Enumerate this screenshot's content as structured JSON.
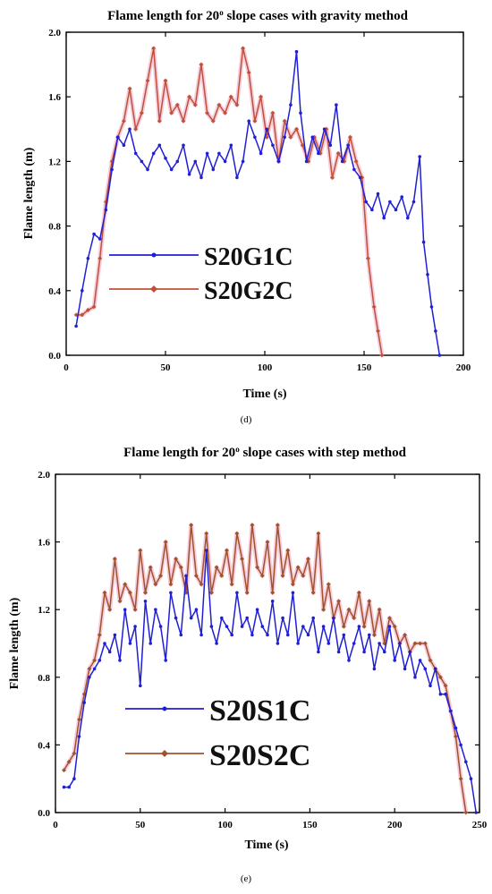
{
  "charts": [
    {
      "panel": "d",
      "caption": "(d)",
      "title_prefix": "Flame length for 20",
      "title_sup": "o",
      "title_suffix": " slope cases with gravity method",
      "colors": {
        "S20G1C": "#1f1fd6",
        "S20G2C": "#c0503a",
        "halo": "#f2b8cc"
      }
    },
    {
      "panel": "e",
      "caption": "(e)",
      "title_prefix": "Flame length for 20",
      "title_sup": "o",
      "title_suffix": " slope cases with step method",
      "colors": {
        "S20S1C": "#1f1fd6",
        "S20S2C": "#a0522d",
        "halo": "#f2b8cc"
      }
    }
  ],
  "chart_data": [
    {
      "type": "line",
      "title": "Flame length for 20o slope cases with gravity method",
      "xlabel": "Time (s)",
      "ylabel": "Flame length (m)",
      "xlim": [
        0,
        200
      ],
      "ylim": [
        0,
        2.0
      ],
      "xticks": [
        "0",
        "50",
        "100",
        "150",
        "200"
      ],
      "yticks": [
        "0.0",
        "0.4",
        "0.8",
        "1.2",
        "1.6",
        "2.0"
      ],
      "legend_position": "center-left",
      "series": [
        {
          "name": "S20G1C",
          "marker": "circle",
          "x": [
            5,
            8,
            11,
            14,
            17,
            20,
            23,
            26,
            29,
            32,
            35,
            38,
            41,
            44,
            47,
            50,
            53,
            56,
            59,
            62,
            65,
            68,
            71,
            74,
            77,
            80,
            83,
            86,
            89,
            92,
            95,
            98,
            101,
            104,
            107,
            110,
            113,
            116,
            118,
            121,
            124,
            127,
            130,
            133,
            136,
            139,
            142,
            145,
            148,
            151,
            154,
            157,
            160,
            163,
            166,
            169,
            172,
            175,
            178,
            180,
            182,
            184,
            186,
            188
          ],
          "y": [
            0.18,
            0.4,
            0.6,
            0.75,
            0.72,
            0.9,
            1.15,
            1.35,
            1.3,
            1.4,
            1.25,
            1.2,
            1.15,
            1.25,
            1.3,
            1.22,
            1.15,
            1.2,
            1.3,
            1.12,
            1.2,
            1.1,
            1.25,
            1.15,
            1.25,
            1.2,
            1.3,
            1.1,
            1.2,
            1.45,
            1.35,
            1.25,
            1.4,
            1.3,
            1.2,
            1.35,
            1.55,
            1.88,
            1.5,
            1.2,
            1.35,
            1.25,
            1.4,
            1.3,
            1.55,
            1.2,
            1.3,
            1.15,
            1.1,
            0.95,
            0.9,
            1.0,
            0.85,
            0.95,
            0.9,
            0.98,
            0.85,
            0.95,
            1.23,
            0.7,
            0.5,
            0.3,
            0.15,
            0.0
          ]
        },
        {
          "name": "S20G2C",
          "marker": "diamond",
          "x": [
            5,
            8,
            11,
            14,
            17,
            20,
            23,
            26,
            29,
            32,
            35,
            38,
            41,
            44,
            47,
            50,
            53,
            56,
            59,
            62,
            65,
            68,
            71,
            74,
            77,
            80,
            83,
            86,
            89,
            92,
            95,
            98,
            101,
            104,
            107,
            110,
            113,
            116,
            119,
            122,
            125,
            128,
            131,
            134,
            137,
            140,
            143,
            146,
            149,
            152,
            155,
            157,
            159
          ],
          "y": [
            0.25,
            0.25,
            0.28,
            0.3,
            0.6,
            0.95,
            1.2,
            1.35,
            1.45,
            1.65,
            1.4,
            1.5,
            1.7,
            1.9,
            1.45,
            1.7,
            1.5,
            1.55,
            1.45,
            1.6,
            1.55,
            1.8,
            1.5,
            1.45,
            1.55,
            1.5,
            1.6,
            1.55,
            1.9,
            1.75,
            1.45,
            1.6,
            1.35,
            1.5,
            1.2,
            1.45,
            1.35,
            1.4,
            1.3,
            1.2,
            1.35,
            1.25,
            1.4,
            1.1,
            1.25,
            1.2,
            1.35,
            1.2,
            1.1,
            0.6,
            0.3,
            0.15,
            0.0
          ]
        }
      ]
    },
    {
      "type": "line",
      "title": "Flame length for 20o slope cases with step method",
      "xlabel": "Time (s)",
      "ylabel": "Flame length (m)",
      "xlim": [
        0,
        250
      ],
      "ylim": [
        0,
        2.0
      ],
      "xticks": [
        "0",
        "50",
        "100",
        "150",
        "200",
        "250"
      ],
      "yticks": [
        "0.0",
        "0.4",
        "0.8",
        "1.2",
        "1.6",
        "2.0"
      ],
      "legend_position": "lower-left",
      "series": [
        {
          "name": "S20S1C",
          "marker": "circle",
          "x": [
            5,
            8,
            11,
            14,
            17,
            20,
            23,
            26,
            29,
            32,
            35,
            38,
            41,
            44,
            47,
            50,
            53,
            56,
            59,
            62,
            65,
            68,
            71,
            74,
            77,
            80,
            83,
            86,
            89,
            92,
            95,
            98,
            101,
            104,
            107,
            110,
            113,
            116,
            119,
            122,
            125,
            128,
            131,
            134,
            137,
            140,
            143,
            146,
            149,
            152,
            155,
            158,
            161,
            164,
            167,
            170,
            173,
            176,
            179,
            182,
            185,
            188,
            191,
            194,
            197,
            200,
            203,
            206,
            209,
            212,
            215,
            218,
            221,
            224,
            227,
            230,
            233,
            236,
            239,
            242,
            245,
            248
          ],
          "y": [
            0.15,
            0.15,
            0.2,
            0.45,
            0.65,
            0.8,
            0.85,
            0.9,
            1.0,
            0.95,
            1.05,
            0.9,
            1.2,
            1.0,
            1.1,
            0.75,
            1.25,
            1.0,
            1.2,
            1.1,
            0.9,
            1.3,
            1.15,
            1.05,
            1.4,
            1.15,
            1.2,
            1.05,
            1.55,
            1.1,
            1.0,
            1.15,
            1.1,
            1.05,
            1.3,
            1.1,
            1.15,
            1.05,
            1.2,
            1.1,
            1.05,
            1.25,
            1.0,
            1.15,
            1.05,
            1.3,
            1.0,
            1.1,
            1.05,
            1.15,
            0.95,
            1.1,
            1.0,
            1.15,
            0.95,
            1.05,
            0.9,
            1.0,
            1.1,
            0.95,
            1.05,
            0.85,
            1.0,
            0.95,
            1.1,
            0.9,
            1.0,
            0.85,
            0.95,
            0.8,
            0.9,
            0.85,
            0.75,
            0.85,
            0.7,
            0.7,
            0.6,
            0.5,
            0.4,
            0.3,
            0.2,
            0.0
          ]
        },
        {
          "name": "S20S2C",
          "marker": "diamond",
          "x": [
            5,
            8,
            11,
            14,
            17,
            20,
            23,
            26,
            29,
            32,
            35,
            38,
            41,
            44,
            47,
            50,
            53,
            56,
            59,
            62,
            65,
            68,
            71,
            74,
            77,
            80,
            83,
            86,
            89,
            92,
            95,
            98,
            101,
            104,
            107,
            110,
            113,
            116,
            119,
            122,
            125,
            128,
            131,
            134,
            137,
            140,
            143,
            146,
            149,
            152,
            155,
            158,
            161,
            164,
            167,
            170,
            173,
            176,
            179,
            182,
            185,
            188,
            191,
            194,
            197,
            200,
            203,
            206,
            209,
            212,
            215,
            218,
            221,
            224,
            227,
            230,
            233,
            236,
            239,
            242
          ],
          "y": [
            0.25,
            0.3,
            0.35,
            0.55,
            0.7,
            0.85,
            0.9,
            1.05,
            1.3,
            1.2,
            1.5,
            1.25,
            1.35,
            1.3,
            1.2,
            1.55,
            1.3,
            1.45,
            1.35,
            1.4,
            1.6,
            1.35,
            1.5,
            1.45,
            1.3,
            1.7,
            1.4,
            1.35,
            1.65,
            1.3,
            1.45,
            1.4,
            1.55,
            1.35,
            1.65,
            1.5,
            1.3,
            1.7,
            1.45,
            1.4,
            1.6,
            1.3,
            1.7,
            1.4,
            1.55,
            1.35,
            1.45,
            1.4,
            1.5,
            1.3,
            1.65,
            1.2,
            1.35,
            1.15,
            1.25,
            1.1,
            1.2,
            1.15,
            1.3,
            1.1,
            1.25,
            1.05,
            1.2,
            1.0,
            1.15,
            1.1,
            1.0,
            1.05,
            0.95,
            1.0,
            1.0,
            1.0,
            0.9,
            0.85,
            0.8,
            0.75,
            0.6,
            0.45,
            0.2,
            0.0
          ]
        }
      ]
    }
  ]
}
